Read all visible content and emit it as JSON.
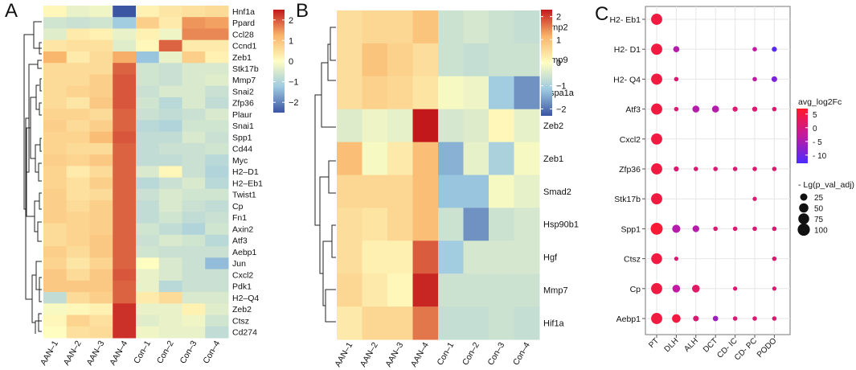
{
  "panels": {
    "a": "A",
    "b": "B",
    "c": "C"
  },
  "colors": {
    "heat_low": "#3b55a3",
    "heat_lowmid": "#9ecae1",
    "heat_mid": "#fffdc0",
    "heat_highmid": "#f9b46b",
    "heat_high": "#c2181c",
    "dot_high": "#ff1a2a",
    "dot_mid": "#c21aa0",
    "dot_low": "#4b2bff",
    "grid": "#e6e6e6",
    "tree": "#222222"
  },
  "chart_data": [
    {
      "type": "heatmap",
      "panel": "A",
      "columns": [
        "AAN–1",
        "AAN–2",
        "AAN–3",
        "AAN–4",
        "Con–1",
        "Con–2",
        "Con–3",
        "Con–4"
      ],
      "rows": [
        "Hnf1a",
        "Ppard",
        "Ccl28",
        "Ccnd1",
        "Zeb1",
        "Stk17b",
        "Mmp7",
        "Snai2",
        "Zfp36",
        "Plaur",
        "Snai1",
        "Spp1",
        "Cd44",
        "Myc",
        "H2–D1",
        "H2–Eb1",
        "Twist1",
        "Cp",
        "Fn1",
        "Axin2",
        "Atf3",
        "Aebp1",
        "Jun",
        "Cxcl2",
        "Pdk1",
        "H2–Q4",
        "Zeb2",
        "Ctsz",
        "Cd274"
      ],
      "values": [
        [
          0.1,
          -0.3,
          -0.2,
          -2.5,
          0.2,
          0.4,
          0.5,
          0.6
        ],
        [
          -0.6,
          -0.7,
          -0.6,
          -1.2,
          0.8,
          0.3,
          1.5,
          1.4
        ],
        [
          -0.4,
          0.3,
          0.2,
          -0.3,
          0.2,
          -0.2,
          1.6,
          1.6
        ],
        [
          0.4,
          0.5,
          0.5,
          -0.4,
          0.1,
          1.9,
          0.3,
          0.3
        ],
        [
          1.2,
          0.3,
          0.6,
          1.3,
          -1.3,
          -0.3,
          0.8,
          0.2
        ],
        [
          0.6,
          0.6,
          0.6,
          1.9,
          -0.6,
          -0.7,
          -0.5,
          -0.5
        ],
        [
          0.6,
          0.6,
          0.8,
          2.0,
          -0.6,
          -0.7,
          -0.5,
          -0.4
        ],
        [
          0.6,
          0.7,
          0.8,
          2.0,
          -0.7,
          -0.5,
          -0.5,
          -0.7
        ],
        [
          0.6,
          0.4,
          0.9,
          2.0,
          -0.6,
          -0.9,
          -0.5,
          -0.8
        ],
        [
          0.7,
          0.7,
          0.6,
          1.9,
          -0.7,
          -0.8,
          -0.7,
          -0.5
        ],
        [
          0.8,
          0.6,
          0.8,
          1.9,
          -0.9,
          -1.0,
          -0.6,
          -0.6
        ],
        [
          0.7,
          0.7,
          1.1,
          2.0,
          -0.8,
          -0.8,
          -0.5,
          -0.7
        ],
        [
          0.7,
          0.6,
          0.6,
          1.9,
          -0.8,
          -0.7,
          -0.7,
          -0.6
        ],
        [
          0.8,
          0.7,
          0.9,
          1.9,
          -0.8,
          -0.8,
          -0.7,
          -0.9
        ],
        [
          0.7,
          0.3,
          0.6,
          1.9,
          -0.5,
          0.1,
          -0.7,
          -1.0
        ],
        [
          0.7,
          0.5,
          0.8,
          1.9,
          -0.9,
          -0.7,
          -0.5,
          -0.9
        ],
        [
          0.8,
          0.5,
          0.6,
          1.9,
          -0.7,
          -0.5,
          -0.6,
          -0.6
        ],
        [
          0.8,
          0.6,
          0.8,
          1.9,
          -0.8,
          -0.5,
          -0.7,
          -0.8
        ],
        [
          0.8,
          0.7,
          0.8,
          1.9,
          -0.8,
          -0.6,
          -0.8,
          -0.7
        ],
        [
          0.6,
          0.7,
          0.8,
          1.9,
          -0.6,
          -0.8,
          -1.0,
          -0.6
        ],
        [
          0.6,
          0.7,
          0.9,
          1.9,
          -0.7,
          -0.5,
          -0.6,
          -0.9
        ],
        [
          0.8,
          0.6,
          0.9,
          1.9,
          -0.6,
          -0.7,
          -0.7,
          -0.7
        ],
        [
          0.7,
          0.4,
          0.7,
          1.9,
          0.0,
          -0.5,
          -0.7,
          -1.4
        ],
        [
          0.9,
          0.6,
          0.9,
          2.0,
          -0.3,
          -0.5,
          -0.7,
          -0.7
        ],
        [
          0.9,
          0.9,
          0.9,
          1.9,
          -0.3,
          -0.9,
          -0.7,
          -0.7
        ],
        [
          -0.8,
          0.6,
          0.8,
          1.9,
          0.3,
          0.6,
          -0.5,
          -0.5
        ],
        [
          -0.1,
          0.1,
          0.2,
          2.3,
          -0.3,
          -0.3,
          0.2,
          -0.4
        ],
        [
          0.1,
          0.7,
          0.5,
          2.3,
          -0.4,
          -0.3,
          -0.2,
          -0.6
        ],
        [
          0.0,
          0.5,
          0.6,
          2.3,
          -0.2,
          -0.3,
          -0.3,
          -0.8
        ]
      ],
      "legend_ticks": [
        2,
        1,
        0,
        -1,
        -2
      ],
      "range": [
        -2.5,
        2.5
      ]
    },
    {
      "type": "heatmap",
      "panel": "B",
      "columns": [
        "AAN–1",
        "AAN–2",
        "AAN–3",
        "AAN–4",
        "Con–1",
        "Con–2",
        "Con–3",
        "Con–4"
      ],
      "rows": [
        "Mmp2",
        "Mmp9",
        "Hspa1a",
        "Zeb2",
        "Zeb1",
        "Smad2",
        "Hsp90b1",
        "Hgf",
        "Mmp7",
        "Hif1a"
      ],
      "values": [
        [
          0.5,
          0.6,
          0.6,
          0.9,
          -0.6,
          -0.5,
          -0.6,
          -0.7
        ],
        [
          0.5,
          0.9,
          0.7,
          0.5,
          -0.6,
          -0.7,
          -0.6,
          -0.6
        ],
        [
          0.5,
          0.7,
          0.6,
          0.4,
          -0.1,
          -0.2,
          -1.1,
          -1.7
        ],
        [
          -0.4,
          -0.2,
          -0.3,
          2.3,
          -0.5,
          -0.4,
          0.1,
          -0.3
        ],
        [
          1.0,
          -0.1,
          0.3,
          1.0,
          -1.4,
          -0.3,
          -1.0,
          -0.1
        ],
        [
          0.6,
          0.6,
          0.6,
          1.0,
          -1.2,
          -1.2,
          -0.1,
          -0.3
        ],
        [
          0.5,
          0.4,
          0.6,
          1.0,
          -0.6,
          -1.7,
          -0.6,
          -0.5
        ],
        [
          0.5,
          0.2,
          0.2,
          1.8,
          -1.1,
          -0.5,
          -0.5,
          -0.5
        ],
        [
          0.6,
          0.3,
          0.1,
          2.2,
          -0.6,
          -0.6,
          -0.6,
          -0.6
        ],
        [
          0.3,
          0.6,
          0.6,
          1.6,
          -0.7,
          -0.7,
          -0.6,
          -0.7
        ]
      ],
      "legend_ticks": [
        2,
        1,
        0,
        -1,
        -2
      ],
      "range": [
        -2.3,
        2.3
      ]
    },
    {
      "type": "scatter",
      "subtype": "dotplot",
      "panel": "C",
      "x_categories": [
        "PT",
        "DLH",
        "ALH",
        "DCT",
        "CD- IC",
        "CD- PC",
        "PODO"
      ],
      "y_categories": [
        "H2- Eb1",
        "H2- D1",
        "H2- Q4",
        "Atf3",
        "Cxcl2",
        "Zfp36",
        "Stk17b",
        "Spp1",
        "Ctsz",
        "Cp",
        "Aebp1"
      ],
      "points": [
        {
          "gene": "H2- Eb1",
          "cell": "PT",
          "log2fc": 5,
          "nlp": 80
        },
        {
          "gene": "H2- D1",
          "cell": "PT",
          "log2fc": 5,
          "nlp": 80
        },
        {
          "gene": "H2- D1",
          "cell": "DLH",
          "log2fc": -4,
          "nlp": 15
        },
        {
          "gene": "H2- D1",
          "cell": "CD- PC",
          "log2fc": -3,
          "nlp": 5
        },
        {
          "gene": "H2- D1",
          "cell": "PODO",
          "log2fc": -12,
          "nlp": 8
        },
        {
          "gene": "H2- Q4",
          "cell": "PT",
          "log2fc": 5,
          "nlp": 80
        },
        {
          "gene": "H2- Q4",
          "cell": "DLH",
          "log2fc": 1,
          "nlp": 5
        },
        {
          "gene": "H2- Q4",
          "cell": "CD- PC",
          "log2fc": -3,
          "nlp": 5
        },
        {
          "gene": "H2- Q4",
          "cell": "PODO",
          "log2fc": -9,
          "nlp": 12
        },
        {
          "gene": "Atf3",
          "cell": "PT",
          "log2fc": 5,
          "nlp": 80
        },
        {
          "gene": "Atf3",
          "cell": "DLH",
          "log2fc": 1,
          "nlp": 5
        },
        {
          "gene": "Atf3",
          "cell": "ALH",
          "log2fc": -4,
          "nlp": 22
        },
        {
          "gene": "Atf3",
          "cell": "DCT",
          "log2fc": -4,
          "nlp": 22
        },
        {
          "gene": "Atf3",
          "cell": "CD- IC",
          "log2fc": 1,
          "nlp": 8
        },
        {
          "gene": "Atf3",
          "cell": "CD- PC",
          "log2fc": 1,
          "nlp": 8
        },
        {
          "gene": "Atf3",
          "cell": "PODO",
          "log2fc": 1,
          "nlp": 5
        },
        {
          "gene": "Cxcl2",
          "cell": "PT",
          "log2fc": 5,
          "nlp": 80
        },
        {
          "gene": "Zfp36",
          "cell": "PT",
          "log2fc": 5,
          "nlp": 80
        },
        {
          "gene": "Zfp36",
          "cell": "DLH",
          "log2fc": 1,
          "nlp": 8
        },
        {
          "gene": "Zfp36",
          "cell": "ALH",
          "log2fc": 1,
          "nlp": 5
        },
        {
          "gene": "Zfp36",
          "cell": "DCT",
          "log2fc": 1,
          "nlp": 5
        },
        {
          "gene": "Zfp36",
          "cell": "CD- IC",
          "log2fc": 1,
          "nlp": 5
        },
        {
          "gene": "Zfp36",
          "cell": "CD- PC",
          "log2fc": 1,
          "nlp": 5
        },
        {
          "gene": "Zfp36",
          "cell": "PODO",
          "log2fc": 1,
          "nlp": 5
        },
        {
          "gene": "Stk17b",
          "cell": "PT",
          "log2fc": 5,
          "nlp": 80
        },
        {
          "gene": "Stk17b",
          "cell": "CD- PC",
          "log2fc": 1,
          "nlp": 4
        },
        {
          "gene": "Spp1",
          "cell": "PT",
          "log2fc": 6,
          "nlp": 95
        },
        {
          "gene": "Spp1",
          "cell": "DLH",
          "log2fc": -4,
          "nlp": 35
        },
        {
          "gene": "Spp1",
          "cell": "ALH",
          "log2fc": -4,
          "nlp": 20
        },
        {
          "gene": "Spp1",
          "cell": "DCT",
          "log2fc": 1,
          "nlp": 5
        },
        {
          "gene": "Spp1",
          "cell": "CD- IC",
          "log2fc": 1,
          "nlp": 5
        },
        {
          "gene": "Spp1",
          "cell": "CD- PC",
          "log2fc": 1,
          "nlp": 5
        },
        {
          "gene": "Spp1",
          "cell": "PODO",
          "log2fc": 1,
          "nlp": 5
        },
        {
          "gene": "Ctsz",
          "cell": "PT",
          "log2fc": 5,
          "nlp": 75
        },
        {
          "gene": "Ctsz",
          "cell": "DLH",
          "log2fc": 1,
          "nlp": 4
        },
        {
          "gene": "Ctsz",
          "cell": "PODO",
          "log2fc": 1,
          "nlp": 5
        },
        {
          "gene": "Cp",
          "cell": "PT",
          "log2fc": 5,
          "nlp": 80
        },
        {
          "gene": "Cp",
          "cell": "DLH",
          "log2fc": -3,
          "nlp": 30
        },
        {
          "gene": "Cp",
          "cell": "ALH",
          "log2fc": 2,
          "nlp": 30
        },
        {
          "gene": "Cp",
          "cell": "CD- IC",
          "log2fc": 1,
          "nlp": 4
        },
        {
          "gene": "Cp",
          "cell": "PODO",
          "log2fc": 1,
          "nlp": 4
        },
        {
          "gene": "Aebp1",
          "cell": "PT",
          "log2fc": 5,
          "nlp": 80
        },
        {
          "gene": "Aebp1",
          "cell": "DLH",
          "log2fc": 5,
          "nlp": 40
        },
        {
          "gene": "Aebp1",
          "cell": "ALH",
          "log2fc": 1,
          "nlp": 12
        },
        {
          "gene": "Aebp1",
          "cell": "DCT",
          "log2fc": -6,
          "nlp": 10
        },
        {
          "gene": "Aebp1",
          "cell": "CD- IC",
          "log2fc": 1,
          "nlp": 5
        },
        {
          "gene": "Aebp1",
          "cell": "CD- PC",
          "log2fc": 1,
          "nlp": 5
        },
        {
          "gene": "Aebp1",
          "cell": "PODO",
          "log2fc": 1,
          "nlp": 5
        }
      ],
      "color_legend": {
        "title": "avg_log2Fc",
        "ticks": [
          "5",
          "0",
          "- 5",
          "- 10"
        ],
        "range": [
          -13,
          7
        ]
      },
      "size_legend": {
        "title": "- Lg(p_val_adj)",
        "ticks": [
          "25",
          "50",
          "75",
          "100"
        ]
      }
    }
  ]
}
